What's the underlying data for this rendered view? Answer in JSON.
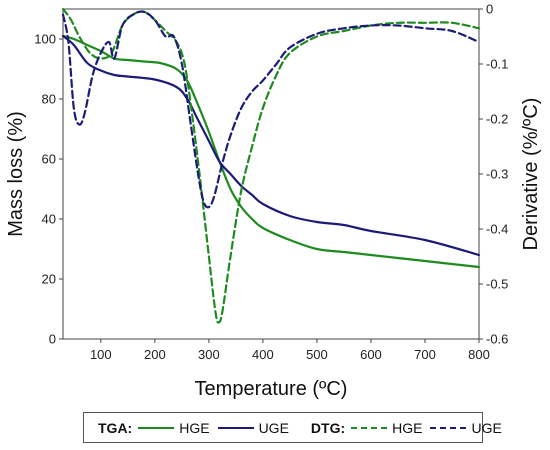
{
  "chart_data": {
    "type": "line",
    "xlabel": "Temperature (ºC)",
    "ylabel_left": "Mass loss (%)",
    "ylabel_right": "Derivative (%/ºC)",
    "xlim": [
      30,
      800
    ],
    "ylim_left": [
      0,
      110
    ],
    "ylim_right": [
      -0.6,
      0
    ],
    "x_ticks": [
      100,
      200,
      300,
      400,
      500,
      600,
      700,
      800
    ],
    "y_left_ticks": [
      0,
      20,
      40,
      60,
      80,
      100
    ],
    "y_right_ticks": [
      0,
      -0.1,
      -0.2,
      -0.3,
      -0.4,
      -0.5,
      -0.6
    ],
    "y_right_tick_labels": [
      "0",
      "-0.1",
      "-0.2",
      "-0.3",
      "-0.4",
      "-0.5",
      "-0.6"
    ],
    "grid": false,
    "legend_position": "bottom",
    "series": [
      {
        "name": "HGE",
        "group": "TGA",
        "axis": "left",
        "style": "solid",
        "color": "#1f8a1f",
        "points": [
          [
            30,
            101
          ],
          [
            50,
            100
          ],
          [
            75,
            98
          ],
          [
            100,
            96
          ],
          [
            125,
            93.5
          ],
          [
            150,
            93
          ],
          [
            180,
            92.5
          ],
          [
            210,
            92
          ],
          [
            240,
            90
          ],
          [
            260,
            86
          ],
          [
            280,
            78
          ],
          [
            300,
            69
          ],
          [
            320,
            59
          ],
          [
            340,
            50
          ],
          [
            360,
            44
          ],
          [
            380,
            40
          ],
          [
            400,
            37
          ],
          [
            450,
            33
          ],
          [
            500,
            30
          ],
          [
            550,
            29
          ],
          [
            600,
            28
          ],
          [
            700,
            26
          ],
          [
            800,
            24
          ]
        ]
      },
      {
        "name": "UGE",
        "group": "TGA",
        "axis": "left",
        "style": "solid",
        "color": "#1c1c78",
        "points": [
          [
            30,
            101
          ],
          [
            50,
            98
          ],
          [
            75,
            92
          ],
          [
            100,
            89.5
          ],
          [
            125,
            88
          ],
          [
            150,
            87.5
          ],
          [
            200,
            86.5
          ],
          [
            240,
            84
          ],
          [
            260,
            80
          ],
          [
            280,
            73
          ],
          [
            300,
            66
          ],
          [
            320,
            59
          ],
          [
            340,
            55
          ],
          [
            360,
            51
          ],
          [
            380,
            48
          ],
          [
            400,
            45
          ],
          [
            450,
            41
          ],
          [
            500,
            39
          ],
          [
            550,
            38
          ],
          [
            600,
            36
          ],
          [
            700,
            33
          ],
          [
            800,
            28
          ]
        ]
      },
      {
        "name": "HGE",
        "group": "DTG",
        "axis": "right",
        "style": "dashed",
        "color": "#1f8a1f",
        "points": [
          [
            30,
            0
          ],
          [
            45,
            -0.02
          ],
          [
            60,
            -0.05
          ],
          [
            80,
            -0.08
          ],
          [
            100,
            -0.09
          ],
          [
            120,
            -0.08
          ],
          [
            140,
            -0.03
          ],
          [
            160,
            -0.01
          ],
          [
            180,
            -0.005
          ],
          [
            200,
            -0.02
          ],
          [
            220,
            -0.04
          ],
          [
            240,
            -0.06
          ],
          [
            255,
            -0.1
          ],
          [
            270,
            -0.2
          ],
          [
            285,
            -0.32
          ],
          [
            300,
            -0.45
          ],
          [
            312,
            -0.55
          ],
          [
            318,
            -0.57
          ],
          [
            325,
            -0.55
          ],
          [
            340,
            -0.45
          ],
          [
            360,
            -0.33
          ],
          [
            380,
            -0.25
          ],
          [
            400,
            -0.18
          ],
          [
            425,
            -0.12
          ],
          [
            450,
            -0.08
          ],
          [
            500,
            -0.05
          ],
          [
            550,
            -0.04
          ],
          [
            600,
            -0.03
          ],
          [
            650,
            -0.025
          ],
          [
            700,
            -0.025
          ],
          [
            750,
            -0.025
          ],
          [
            800,
            -0.035
          ]
        ]
      },
      {
        "name": "UGE",
        "group": "DTG",
        "axis": "right",
        "style": "dashed",
        "color": "#1c1c78",
        "points": [
          [
            30,
            -0.01
          ],
          [
            40,
            -0.06
          ],
          [
            50,
            -0.18
          ],
          [
            60,
            -0.21
          ],
          [
            70,
            -0.19
          ],
          [
            85,
            -0.12
          ],
          [
            100,
            -0.08
          ],
          [
            115,
            -0.06
          ],
          [
            125,
            -0.09
          ],
          [
            140,
            -0.03
          ],
          [
            160,
            -0.01
          ],
          [
            180,
            -0.005
          ],
          [
            200,
            -0.02
          ],
          [
            220,
            -0.05
          ],
          [
            235,
            -0.05
          ],
          [
            250,
            -0.1
          ],
          [
            265,
            -0.2
          ],
          [
            280,
            -0.3
          ],
          [
            290,
            -0.35
          ],
          [
            300,
            -0.36
          ],
          [
            310,
            -0.34
          ],
          [
            325,
            -0.28
          ],
          [
            340,
            -0.23
          ],
          [
            360,
            -0.18
          ],
          [
            380,
            -0.15
          ],
          [
            400,
            -0.13
          ],
          [
            425,
            -0.1
          ],
          [
            450,
            -0.07
          ],
          [
            500,
            -0.045
          ],
          [
            550,
            -0.035
          ],
          [
            600,
            -0.03
          ],
          [
            650,
            -0.03
          ],
          [
            700,
            -0.035
          ],
          [
            750,
            -0.04
          ],
          [
            800,
            -0.06
          ]
        ]
      }
    ]
  },
  "legend": {
    "tga_label": "TGA:",
    "dtg_label": "DTG:",
    "tga_items": [
      "HGE",
      "UGE"
    ],
    "dtg_items": [
      "HGE",
      "UGE"
    ]
  }
}
